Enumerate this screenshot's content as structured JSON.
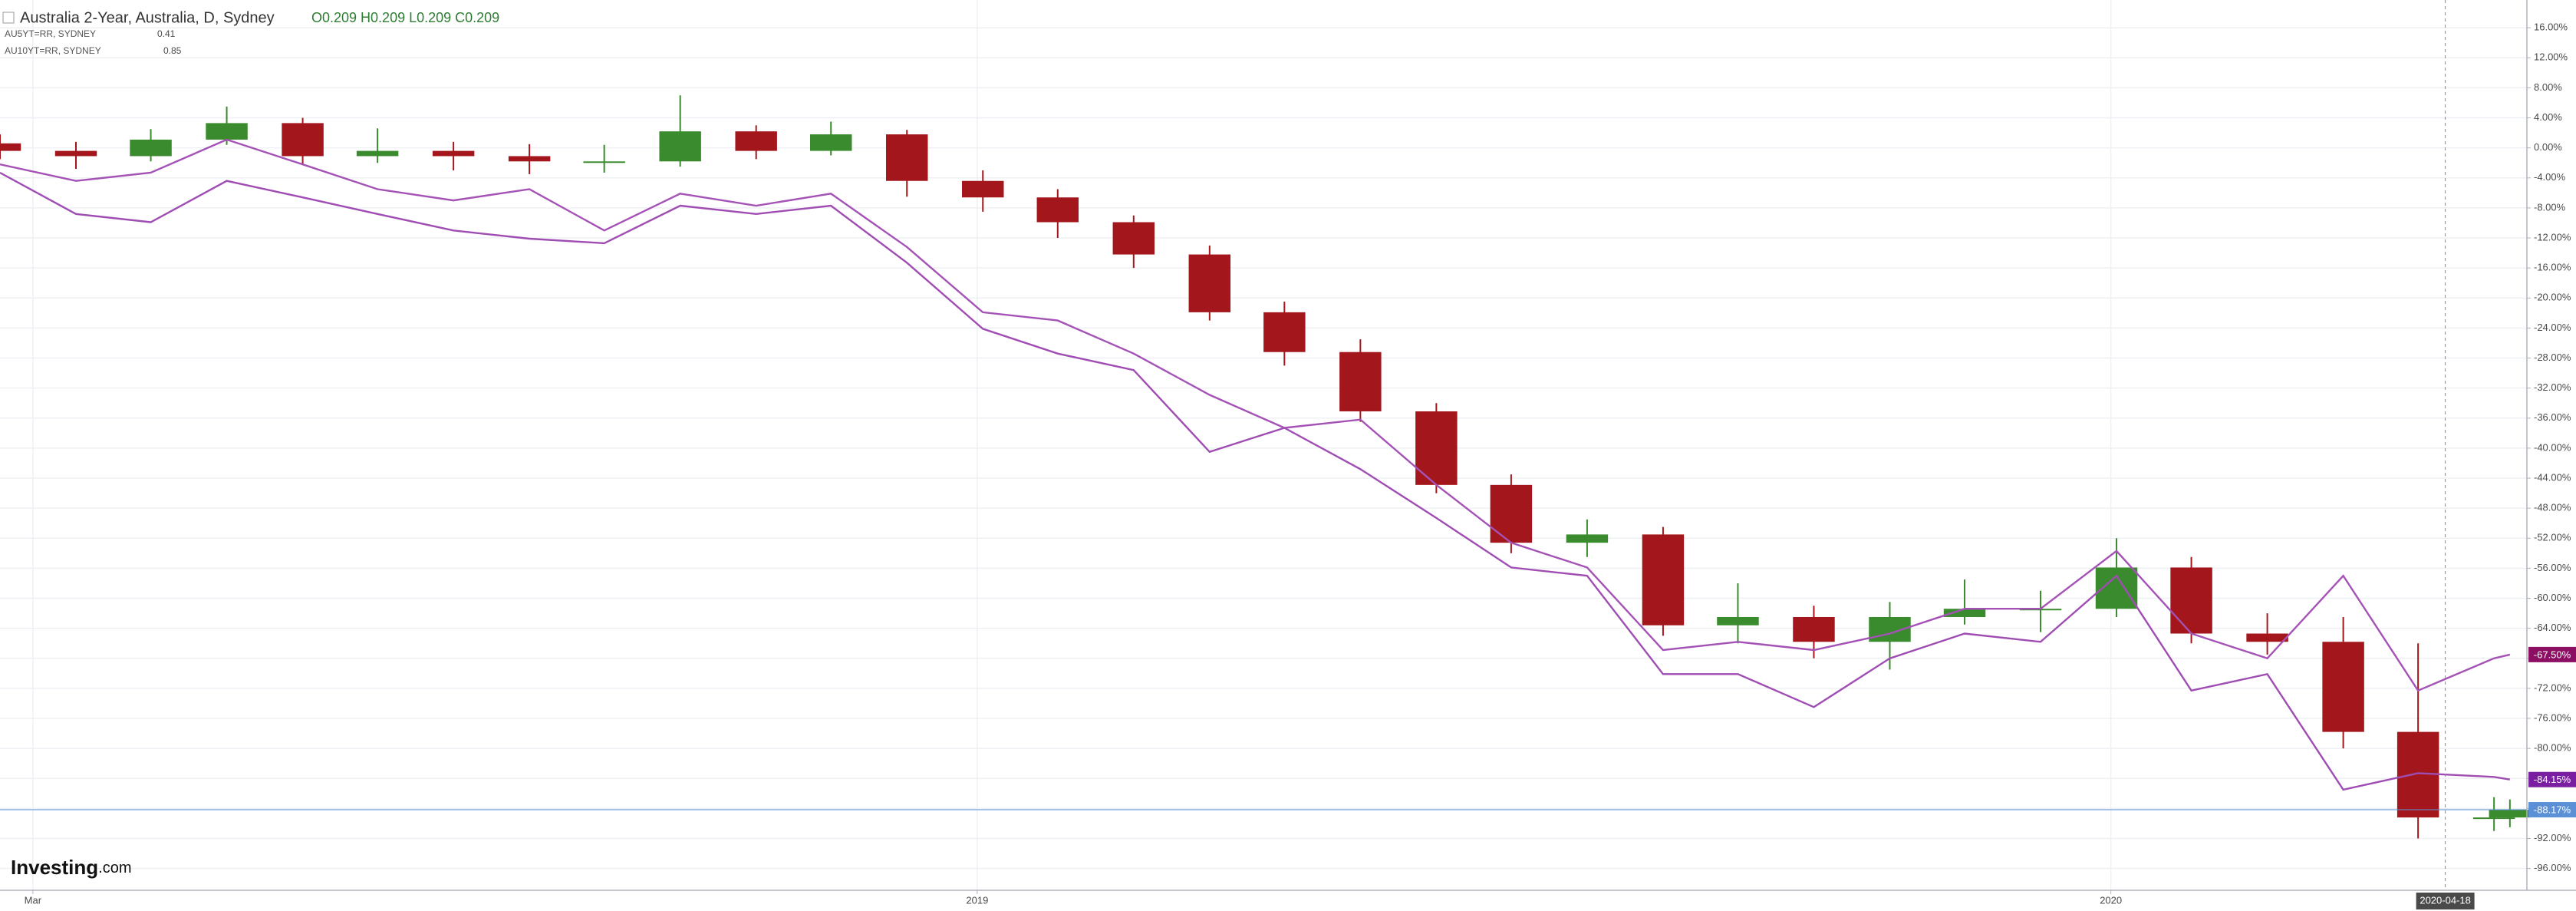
{
  "chart_data": {
    "type": "candlestick",
    "x": [
      2018.138,
      2018.205,
      2018.271,
      2018.338,
      2018.405,
      2018.471,
      2018.538,
      2018.605,
      2018.671,
      2018.738,
      2018.805,
      2018.871,
      2018.938,
      2019.005,
      2019.071,
      2019.138,
      2019.205,
      2019.271,
      2019.338,
      2019.405,
      2019.471,
      2019.538,
      2019.605,
      2019.671,
      2019.738,
      2019.805,
      2019.871,
      2019.938,
      2020.005,
      2020.071,
      2020.138,
      2020.205,
      2020.271,
      2020.338,
      2020.352
    ],
    "xlim": [
      2018.138,
      2020.367
    ],
    "xticks": [
      {
        "value": 2018.167,
        "label": "Mar"
      },
      {
        "value": 2019,
        "label": "2019"
      },
      {
        "value": 2020,
        "label": "2020"
      }
    ],
    "ylim": [
      -98.9,
      19.7
    ],
    "yticks": [
      {
        "value": 16,
        "label": "16.00%"
      },
      {
        "value": 12,
        "label": "12.00%"
      },
      {
        "value": 8,
        "label": "8.00%"
      },
      {
        "value": 4,
        "label": "4.00%"
      },
      {
        "value": 0,
        "label": "0.00%"
      },
      {
        "value": -4,
        "label": "-4.00%"
      },
      {
        "value": -8,
        "label": "-8.00%"
      },
      {
        "value": -12,
        "label": "-12.00%"
      },
      {
        "value": -16,
        "label": "-16.00%"
      },
      {
        "value": -20,
        "label": "-20.00%"
      },
      {
        "value": -24,
        "label": "-24.00%"
      },
      {
        "value": -28,
        "label": "-28.00%"
      },
      {
        "value": -32,
        "label": "-32.00%"
      },
      {
        "value": -36,
        "label": "-36.00%"
      },
      {
        "value": -40,
        "label": "-40.00%"
      },
      {
        "value": -44,
        "label": "-44.00%"
      },
      {
        "value": -48,
        "label": "-48.00%"
      },
      {
        "value": -52,
        "label": "-52.00%"
      },
      {
        "value": -56,
        "label": "-56.00%"
      },
      {
        "value": -60,
        "label": "-60.00%"
      },
      {
        "value": -64,
        "label": "-64.00%"
      },
      {
        "value": -68,
        "label": "-68.00%"
      },
      {
        "value": -72,
        "label": "-72.00%"
      },
      {
        "value": -76,
        "label": "-76.00%"
      },
      {
        "value": -80,
        "label": "-80.00%"
      },
      {
        "value": -84,
        "label": "-84.00%"
      },
      {
        "value": -88,
        "label": "-88.00%"
      },
      {
        "value": -92,
        "label": "-92.00%"
      },
      {
        "value": -96,
        "label": "-96.00%"
      }
    ],
    "grid": true,
    "crosshair": {
      "x": 2020.295,
      "label": "2020-04-18"
    },
    "logo": {
      "brand": "Investing",
      "suffix": ".com"
    },
    "series": [
      {
        "name": "Australia 2-Year, Australia, D, Sydney",
        "type": "candlestick",
        "ohlc_label": "O0.209 H0.209 L0.209 C0.209",
        "up_color": "#3a8a2e",
        "down_color": "#a3171c",
        "tag_color": "#5b8fd6",
        "last_value_label": "-88.17%",
        "open": [
          0.6,
          -0.4,
          -1.1,
          1.1,
          3.3,
          -1.1,
          -0.4,
          -1.1,
          -1.8,
          -1.8,
          2.2,
          -0.4,
          1.8,
          -4.4,
          -6.6,
          -9.9,
          -14.2,
          -21.9,
          -27.2,
          -35.1,
          -44.9,
          -52.6,
          -51.5,
          -63.6,
          -62.5,
          -65.8,
          -62.5,
          -61.4,
          -61.4,
          -55.9,
          -64.7,
          -65.8,
          -77.8,
          -89.2,
          -89.2
        ],
        "high": [
          1.8,
          0.8,
          2.5,
          5.5,
          4.0,
          2.6,
          0.8,
          0.5,
          0.4,
          7.0,
          3.0,
          3.5,
          2.4,
          -3.0,
          -5.5,
          -9.0,
          -13.0,
          -20.5,
          -25.5,
          -34.0,
          -43.5,
          -49.5,
          -50.5,
          -58.0,
          -61.0,
          -60.5,
          -57.5,
          -59.0,
          -52.0,
          -54.5,
          -62.0,
          -62.5,
          -66.0,
          -86.5,
          -86.8
        ],
        "low": [
          -1.5,
          -2.8,
          -1.8,
          0.4,
          -2.2,
          -2.0,
          -3.0,
          -3.5,
          -3.3,
          -2.5,
          -1.5,
          -1.0,
          -6.5,
          -8.5,
          -12.0,
          -16.0,
          -23.0,
          -29.0,
          -36.5,
          -46.0,
          -54.0,
          -54.5,
          -65.0,
          -66.0,
          -68.0,
          -69.5,
          -63.5,
          -64.5,
          -62.5,
          -66.0,
          -67.5,
          -80.0,
          -92.0,
          -91.0,
          -90.5
        ],
        "close": [
          -0.4,
          -1.1,
          1.1,
          3.3,
          -1.1,
          -0.4,
          -1.1,
          -1.8,
          -1.8,
          2.2,
          -0.4,
          1.8,
          -4.4,
          -6.6,
          -9.9,
          -14.2,
          -21.9,
          -27.2,
          -35.1,
          -44.9,
          -52.6,
          -51.5,
          -63.6,
          -62.5,
          -65.8,
          -62.5,
          -61.4,
          -61.4,
          -55.9,
          -64.7,
          -65.8,
          -77.8,
          -89.2,
          -89.2,
          -88.17
        ]
      },
      {
        "name": "AU5YT=RR, SYDNEY",
        "type": "line",
        "color": "#a04db3",
        "tag_color": "#7b1fa2",
        "legend_value": "0.41",
        "last_value_label": "-84.15%",
        "values": [
          -3.3,
          -8.8,
          -9.9,
          -4.4,
          -6.6,
          -8.8,
          -11.0,
          -12.1,
          -12.7,
          -7.7,
          -8.8,
          -7.7,
          -15.3,
          -24.1,
          -27.4,
          -29.6,
          -40.5,
          -37.3,
          -42.8,
          -49.3,
          -55.9,
          -57.0,
          -70.1,
          -70.1,
          -74.5,
          -68.0,
          -64.7,
          -65.8,
          -57.0,
          -72.3,
          -70.1,
          -85.5,
          -83.3,
          -83.8,
          -84.15
        ]
      },
      {
        "name": "AU10YT=RR, SYDNEY",
        "type": "line",
        "color": "#a552b6",
        "tag_color": "#8c0f63",
        "legend_value": "0.85",
        "last_value_label": "-67.50%",
        "values": [
          -2.2,
          -4.4,
          -3.3,
          1.1,
          -2.2,
          -5.5,
          -7.0,
          -5.5,
          -11.0,
          -6.1,
          -7.7,
          -6.1,
          -13.2,
          -21.9,
          -23.0,
          -27.4,
          -32.9,
          -37.3,
          -36.2,
          -44.9,
          -52.6,
          -55.9,
          -66.9,
          -65.8,
          -66.9,
          -64.7,
          -61.4,
          -61.4,
          -53.7,
          -64.7,
          -68.0,
          -57.0,
          -72.3,
          -68.0,
          -67.5
        ]
      }
    ]
  }
}
